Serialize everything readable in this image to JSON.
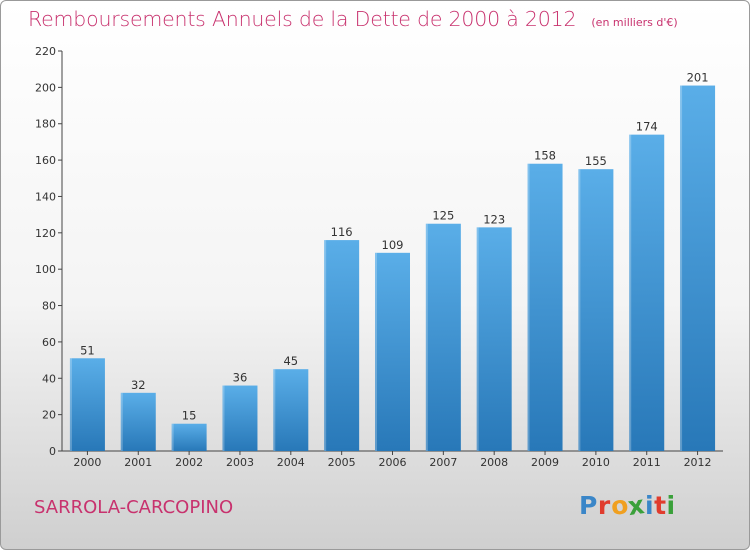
{
  "chart_data": {
    "type": "bar",
    "title": "Remboursements Annuels de la Dette de 2000 à 2012",
    "unit_note": "(en milliers d'€)",
    "categories": [
      "2000",
      "2001",
      "2002",
      "2003",
      "2004",
      "2005",
      "2006",
      "2007",
      "2008",
      "2009",
      "2010",
      "2011",
      "2012"
    ],
    "values": [
      51,
      32,
      15,
      36,
      45,
      116,
      109,
      125,
      123,
      158,
      155,
      174,
      201
    ],
    "ylim": [
      0,
      220
    ],
    "yticks": [
      0,
      20,
      40,
      60,
      80,
      100,
      120,
      140,
      160,
      180,
      200,
      220
    ],
    "grid": false,
    "bar_color_top": "#5aaee8",
    "bar_color_bottom": "#2878b8"
  },
  "footer": {
    "commune": "SARROLA-CARCOPINO"
  },
  "logo": {
    "letters": [
      "P",
      "r",
      "o",
      "x",
      "i",
      "t",
      "i"
    ],
    "colors": [
      "#3a86c8",
      "#e03c2e",
      "#f0a020",
      "#3aa03a",
      "#3a86c8",
      "#e03c2e",
      "#3aa03a"
    ]
  }
}
